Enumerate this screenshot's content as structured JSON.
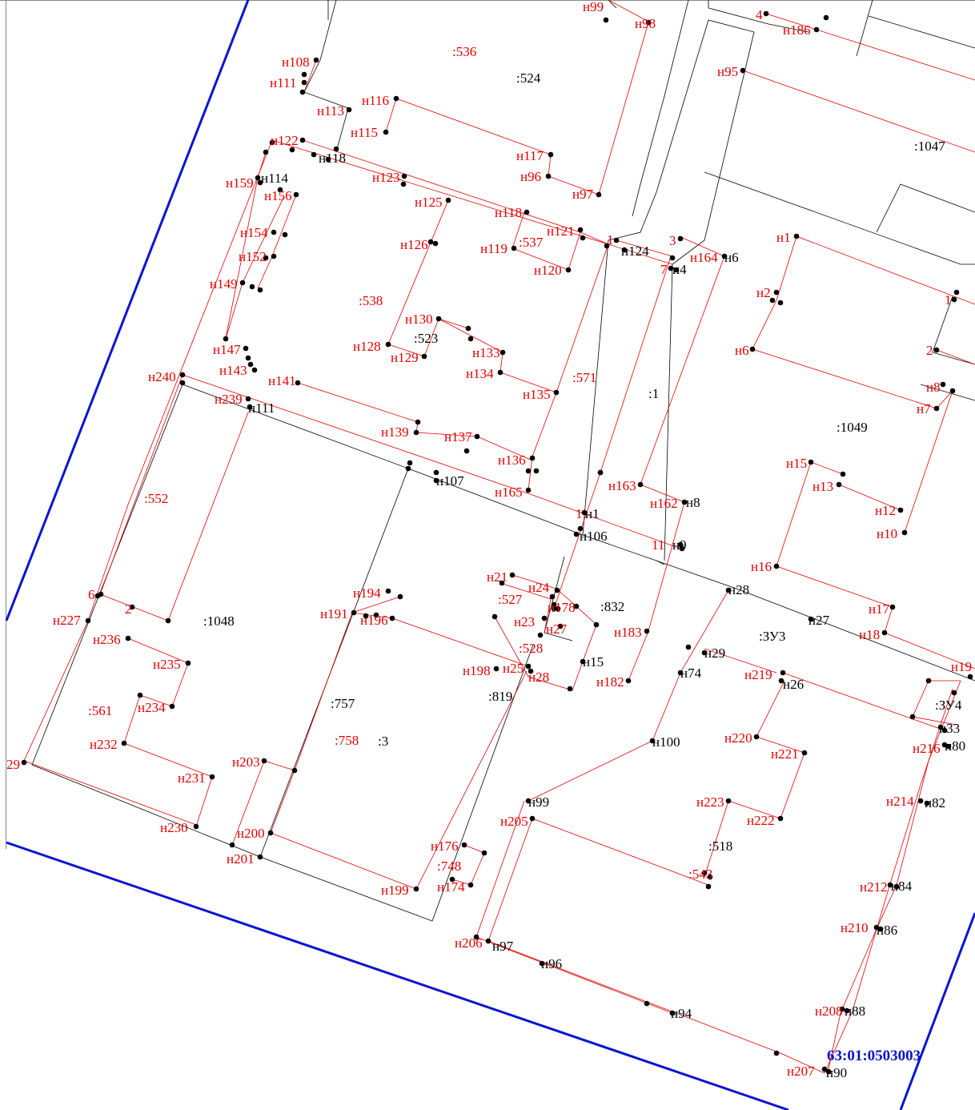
{
  "map": {
    "quarter_number": "63:01:0503003",
    "colors": {
      "boundary": "#0a14d2",
      "new_lines": "#e00000",
      "existing_lines": "#000000"
    },
    "parcel_labels": {
      "red": [
        ":536",
        ":538",
        ":537",
        ":571",
        ":552",
        ":561",
        ":527",
        ":528",
        ":758",
        ":748",
        ":543"
      ],
      "black": [
        ":524",
        ":1047",
        ":523",
        ":1",
        ":1049",
        ":1048",
        ":832",
        ":ЗУ3",
        ":819",
        ":757",
        ":3",
        ":ЗУ4",
        ":518"
      ]
    },
    "point_labels": {
      "red": [
        "н99",
        "н98",
        "4",
        "н186",
        "н108",
        "н111",
        "н95",
        "н116",
        "н113",
        "н115",
        "н122",
        "н117",
        "н96",
        "н159",
        "н123",
        "н97",
        "н156",
        "н125",
        "н118",
        "н121",
        "1",
        "3",
        "н1",
        "н154",
        "н126",
        "н119",
        "н164",
        "7",
        "н152",
        "н120",
        "н149",
        "н2",
        "1",
        "н130",
        "н133",
        "н128",
        "н129",
        "н6",
        "2",
        "н147",
        "н143",
        "н134",
        "н141",
        "н135",
        "н240",
        "н239",
        "н8",
        "н7",
        "н139",
        "н137",
        "н136",
        "н15",
        "н13",
        "н165",
        "н163",
        "н162",
        "н12",
        "1",
        "н10",
        "11",
        "н21",
        "н24",
        "н178",
        "н16",
        "6",
        "2",
        "н191",
        "н194",
        "н196",
        "н23",
        "н27",
        "н17",
        "н227",
        "н236",
        "н18",
        "н235",
        "н198",
        "н25",
        "н28",
        "н183",
        "н182",
        "н219",
        "н19",
        "н234",
        "н232",
        "н220",
        "н221",
        "н216",
        "29",
        "н203",
        "н231",
        "н214",
        "н223",
        "н222",
        "н230",
        "н205",
        "н200",
        "н201",
        "н176",
        "н199",
        "н174",
        "н212",
        "н206",
        "н210",
        "н208",
        "н207"
      ],
      "black": [
        "н118",
        "н114",
        "н124",
        "н4",
        "н6",
        "н111",
        "н107",
        "н1",
        "н8",
        "н106",
        "н9",
        "н28",
        "н27",
        "н29",
        "н15",
        "н74",
        "н26",
        "н33",
        "н100",
        "н80",
        "н99",
        "н82",
        "н84",
        "н97",
        "н86",
        "н96",
        "н94",
        "н88",
        "н90"
      ]
    }
  }
}
